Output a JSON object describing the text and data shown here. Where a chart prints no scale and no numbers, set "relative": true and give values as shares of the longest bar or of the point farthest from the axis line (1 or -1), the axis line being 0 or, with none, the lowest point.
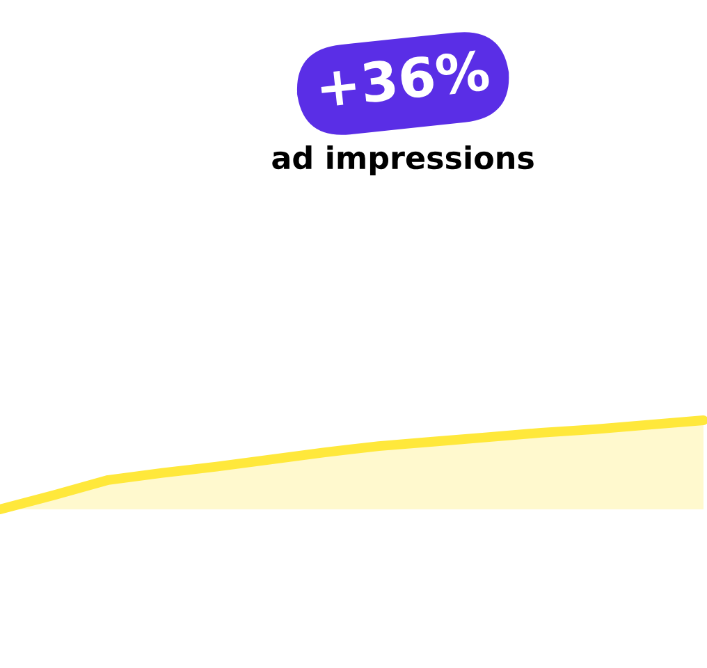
{
  "chart_data": {
    "type": "area",
    "relative": true,
    "categories": [
      null,
      null,
      null,
      null,
      null,
      null,
      null,
      null,
      null,
      null,
      null,
      null,
      null,
      null
    ],
    "series": [
      {
        "color": "#ffe83b",
        "values": [
          0,
          0.16,
          0.33,
          0.41,
          0.48,
          0.56,
          0.64,
          0.71,
          0.76,
          0.81,
          0.86,
          0.9,
          0.95,
          1
        ]
      }
    ],
    "annotations": [
      "+36%",
      "ad impressions"
    ]
  }
}
